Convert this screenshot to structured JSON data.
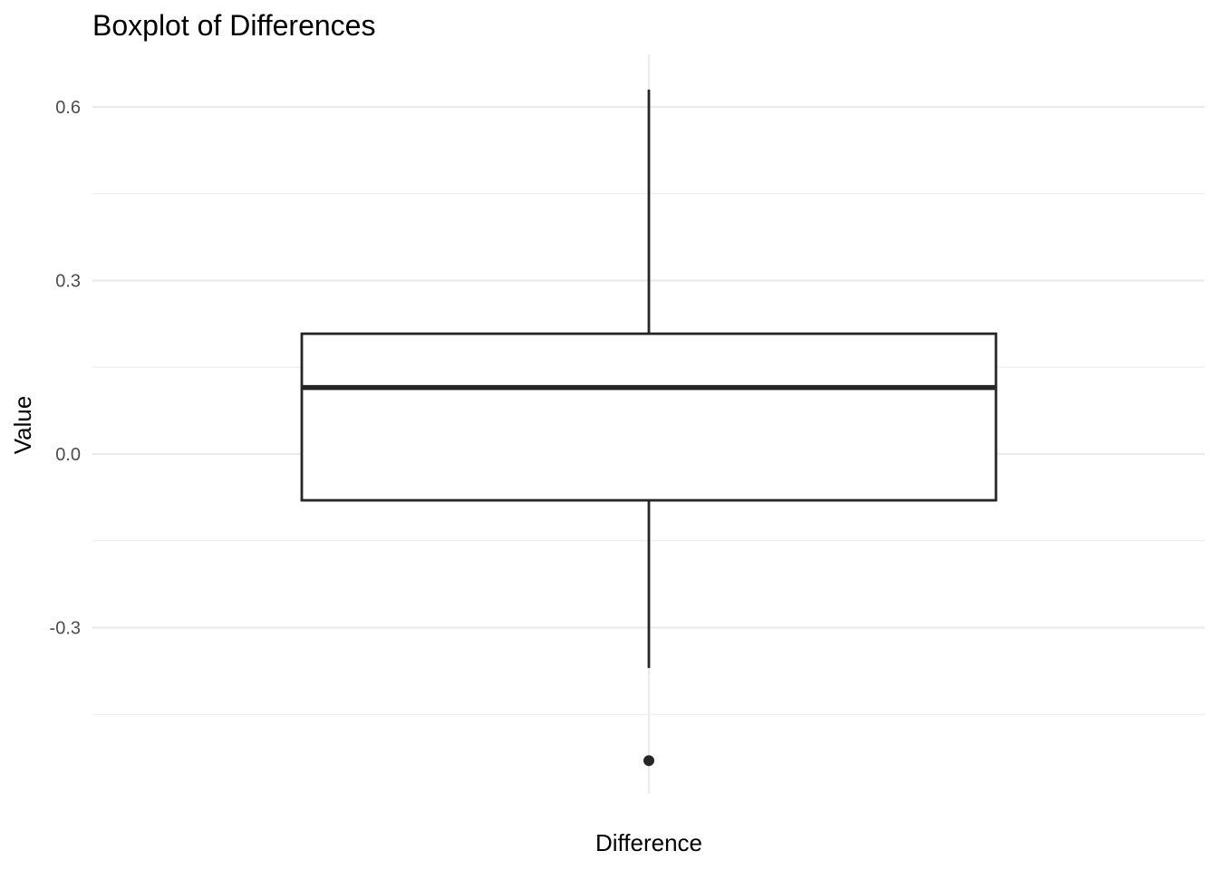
{
  "chart_data": {
    "type": "boxplot",
    "title": "Boxplot of Differences",
    "xlabel": "Difference",
    "ylabel": "Value",
    "categories": [
      "Difference"
    ],
    "ylim": [
      -0.46,
      0.69
    ],
    "yticks": [
      -0.3,
      0.0,
      0.3,
      0.6
    ],
    "ytick_labels": [
      "-0.3",
      "0.0",
      "0.3",
      "0.6"
    ],
    "yminor": [
      -0.45,
      -0.15,
      0.15,
      0.45
    ],
    "boxes": [
      {
        "category": "Difference",
        "whisker_low": -0.37,
        "q1": -0.08,
        "median": 0.115,
        "q3": 0.208,
        "whisker_high": 0.63,
        "outliers": [
          -0.53
        ]
      }
    ],
    "grid": true,
    "legend": "none",
    "colors": {
      "box_stroke": "#262626",
      "box_fill": "#ffffff",
      "grid": "#ebebeb",
      "tick_text": "#4d4d4d"
    }
  }
}
